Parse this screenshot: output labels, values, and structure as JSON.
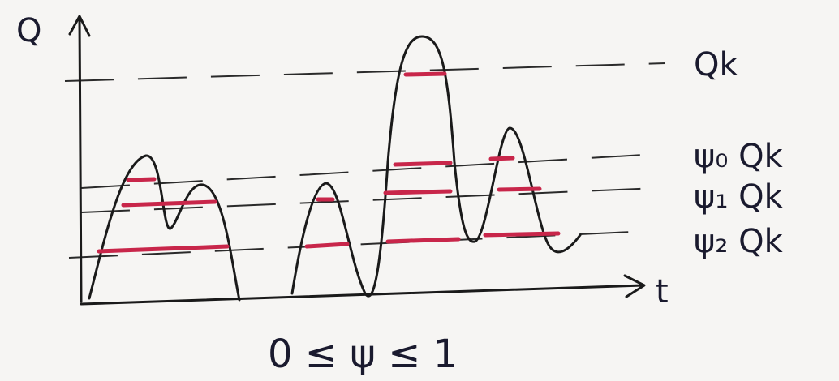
{
  "axes": {
    "y_label": "Q",
    "x_label": "t"
  },
  "levels": [
    {
      "label": "Qk"
    },
    {
      "label": "ψ₀ Qk"
    },
    {
      "label": "ψ₁ Qk"
    },
    {
      "label": "ψ₂ Qk"
    }
  ],
  "caption": "0 ≤ ψ ≤ 1"
}
